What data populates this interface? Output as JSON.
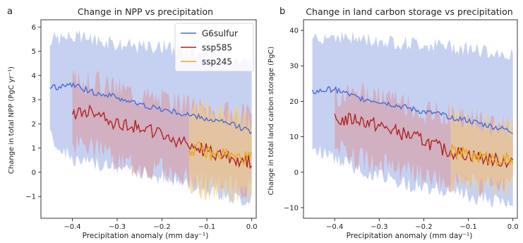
{
  "chart_data": [
    {
      "panel_letter": "a",
      "type": "line",
      "title": "Change in NPP vs precipitation",
      "xlabel": "Precipitation anomaly (mm day⁻¹)",
      "ylabel": "Change in total NPP (PgC yr⁻¹)",
      "xlim": [
        -0.47,
        0.01
      ],
      "ylim": [
        -1.9,
        6.3
      ],
      "xticks": [
        -0.4,
        -0.3,
        -0.2,
        -0.1,
        0.0
      ],
      "xtick_labels": [
        "−0.4",
        "−0.3",
        "−0.2",
        "−0.1",
        "0.0"
      ],
      "yticks": [
        -1,
        0,
        1,
        2,
        3,
        4,
        5,
        6
      ],
      "ytick_labels": [
        "−1",
        "0",
        "1",
        "2",
        "3",
        "4",
        "5",
        "6"
      ],
      "legend": "top-right",
      "grid": false,
      "series": [
        {
          "name": "G6sulfur",
          "color": "#4a6bd6",
          "fill_color": "#b3c1ee",
          "x": [
            -0.45,
            -0.4,
            -0.35,
            -0.3,
            -0.25,
            -0.2,
            -0.15,
            -0.1,
            -0.05,
            0.0
          ],
          "values": [
            3.5,
            3.6,
            3.3,
            3.1,
            2.8,
            2.6,
            2.4,
            2.2,
            2.0,
            1.7
          ],
          "lower": [
            1.5,
            0.5,
            0.3,
            0.2,
            0.0,
            -0.2,
            -0.4,
            -0.7,
            -1.0,
            -1.2
          ],
          "upper": [
            5.5,
            5.6,
            5.5,
            5.3,
            5.2,
            5.2,
            5.0,
            4.9,
            4.7,
            4.6
          ]
        },
        {
          "name": "ssp585",
          "color": "#b22222",
          "fill_color": "#d99aa0",
          "x": [
            -0.4,
            -0.35,
            -0.3,
            -0.25,
            -0.2,
            -0.15,
            -0.1,
            -0.05,
            0.0
          ],
          "values": [
            2.4,
            2.5,
            2.0,
            1.9,
            1.5,
            1.2,
            0.9,
            0.6,
            0.4
          ],
          "lower": [
            1.2,
            1.0,
            0.4,
            0.2,
            0.1,
            -0.2,
            -0.4,
            -0.6,
            -0.7
          ],
          "upper": [
            3.8,
            3.7,
            3.5,
            3.2,
            3.0,
            2.8,
            2.6,
            2.4,
            2.3
          ]
        },
        {
          "name": "ssp245",
          "color": "#e6a817",
          "fill_color": "#f0d08a",
          "x": [
            -0.14,
            -0.12,
            -0.1,
            -0.08,
            -0.06,
            -0.04,
            -0.02,
            0.0
          ],
          "values": [
            0.9,
            1.0,
            0.8,
            0.7,
            0.8,
            0.6,
            0.6,
            0.6
          ],
          "lower": [
            -0.5,
            -0.6,
            -0.7,
            -0.8,
            -0.9,
            -0.9,
            -1.0,
            -1.0
          ],
          "upper": [
            2.8,
            2.7,
            2.6,
            2.5,
            2.4,
            2.3,
            2.2,
            2.1
          ]
        }
      ]
    },
    {
      "panel_letter": "b",
      "type": "line",
      "title": "Change in land carbon storage vs precipitation",
      "xlabel": "Precipitation anomaly (mm day⁻¹)",
      "ylabel": "Change in total land carbon storage (PgC)",
      "xlim": [
        -0.47,
        0.01
      ],
      "ylim": [
        -13,
        43
      ],
      "xticks": [
        -0.4,
        -0.3,
        -0.2,
        -0.1,
        0.0
      ],
      "xtick_labels": [
        "−0.4",
        "−0.3",
        "−0.2",
        "−0.1",
        "0.0"
      ],
      "yticks": [
        -10,
        0,
        10,
        20,
        30,
        40
      ],
      "ytick_labels": [
        "−10",
        "0",
        "10",
        "20",
        "30",
        "40"
      ],
      "grid": false,
      "series": [
        {
          "name": "G6sulfur",
          "color": "#4a6bd6",
          "fill_color": "#b3c1ee",
          "x": [
            -0.45,
            -0.4,
            -0.35,
            -0.3,
            -0.25,
            -0.2,
            -0.15,
            -0.1,
            -0.05,
            0.0
          ],
          "values": [
            22.5,
            23.5,
            21.0,
            20.0,
            18.5,
            17.0,
            16.0,
            14.5,
            13.0,
            11.5
          ],
          "lower": [
            7.0,
            4.0,
            1.0,
            -1.0,
            -3.0,
            -4.0,
            -5.0,
            -6.5,
            -8.0,
            -9.0
          ],
          "upper": [
            38.0,
            38.5,
            37.5,
            37.0,
            36.5,
            36.0,
            35.5,
            35.0,
            34.0,
            33.0
          ]
        },
        {
          "name": "ssp585",
          "color": "#b22222",
          "fill_color": "#d99aa0",
          "x": [
            -0.4,
            -0.35,
            -0.3,
            -0.25,
            -0.2,
            -0.15,
            -0.1,
            -0.05,
            0.0
          ],
          "values": [
            14.5,
            15.0,
            13.0,
            11.0,
            9.0,
            6.0,
            5.0,
            3.5,
            3.0
          ],
          "lower": [
            6.0,
            4.0,
            2.0,
            0.0,
            -1.0,
            -3.0,
            -3.5,
            -4.0,
            -4.0
          ],
          "upper": [
            22.0,
            22.5,
            21.0,
            19.5,
            17.0,
            16.0,
            15.0,
            14.0,
            13.0
          ]
        },
        {
          "name": "ssp245",
          "color": "#e6a817",
          "fill_color": "#f0d08a",
          "x": [
            -0.14,
            -0.12,
            -0.1,
            -0.08,
            -0.06,
            -0.04,
            -0.02,
            0.0
          ],
          "values": [
            6.0,
            5.5,
            5.0,
            4.5,
            4.0,
            4.0,
            3.5,
            3.5
          ],
          "lower": [
            -3.0,
            -3.0,
            -3.5,
            -4.0,
            -4.0,
            -4.5,
            -4.5,
            -4.5
          ],
          "upper": [
            16.0,
            15.5,
            15.0,
            14.5,
            14.0,
            13.5,
            13.0,
            13.0
          ]
        }
      ]
    }
  ]
}
